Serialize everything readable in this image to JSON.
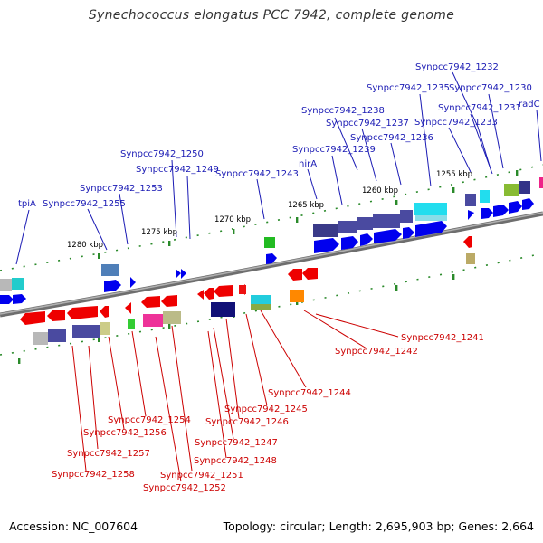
{
  "title": "Synechococcus elongatus PCC 7942, complete genome",
  "footer": {
    "accession": "Accession: NC_007604",
    "genome_info": "Topology: circular; Length: 2,695,903 bp; Genes: 2,664"
  },
  "colors": {
    "forward_gene_label": "#1a1ab4",
    "reverse_gene_label": "#cc0000",
    "forward_arrow": "#0000ee",
    "reverse_arrow": "#ee0000",
    "backbone": "#808080",
    "tick": "#2a8a2a"
  },
  "scale_labels": [
    "1280 kbp",
    "1275 kbp",
    "1270 kbp",
    "1265 kbp",
    "1260 kbp",
    "1255 kbp"
  ],
  "forward_genes": [
    "Synpcc7942_1232",
    "Synpcc7942_1235",
    "Synpcc7942_1230",
    "Synpcc7942_1238",
    "Synpcc7942_1231",
    "radC",
    "Synpcc7942_1237",
    "Synpcc7942_1233",
    "Synpcc7942_1236",
    "Synpcc7942_1239",
    "nirA",
    "Synpcc7942_1250",
    "Synpcc7942_1249",
    "Synpcc7942_1243",
    "Synpcc7942_1253",
    "tpiA",
    "Synpcc7942_1255"
  ],
  "reverse_genes": [
    "Synpcc7942_1241",
    "Synpcc7942_1242",
    "Synpcc7942_1244",
    "Synpcc7942_1245",
    "Synpcc7942_1254",
    "Synpcc7942_1246",
    "Synpcc7942_1256",
    "Synpcc7942_1247",
    "Synpcc7942_1257",
    "Synpcc7942_1248",
    "Synpcc7942_1258",
    "Synpcc7942_1251",
    "Synpcc7942_1252"
  ]
}
